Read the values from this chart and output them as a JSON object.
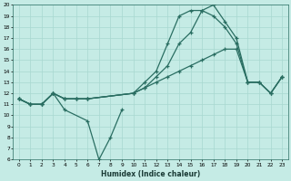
{
  "xlabel": "Humidex (Indice chaleur)",
  "xlim": [
    -0.5,
    23.5
  ],
  "ylim": [
    6,
    20
  ],
  "yticks": [
    6,
    7,
    8,
    9,
    10,
    11,
    12,
    13,
    14,
    15,
    16,
    17,
    18,
    19,
    20
  ],
  "xticks": [
    0,
    1,
    2,
    3,
    4,
    5,
    6,
    7,
    8,
    9,
    10,
    11,
    12,
    13,
    14,
    15,
    16,
    17,
    18,
    19,
    20,
    21,
    22,
    23
  ],
  "line_color": "#2a6e62",
  "bg_color": "#c5ebe5",
  "grid_color": "#a8d8d0",
  "lines": [
    {
      "x": [
        0,
        1,
        2,
        3,
        4,
        6,
        7,
        8,
        9
      ],
      "y": [
        11.5,
        11.0,
        11.0,
        12.0,
        10.5,
        9.5,
        6.0,
        8.0,
        10.5
      ]
    },
    {
      "x": [
        0,
        1,
        2,
        3,
        4,
        5,
        6,
        10,
        11,
        12,
        13,
        14,
        15,
        16,
        17,
        18,
        19,
        20,
        21,
        22,
        23
      ],
      "y": [
        11.5,
        11.0,
        11.0,
        12.0,
        11.5,
        11.5,
        11.5,
        12.0,
        12.5,
        13.0,
        13.5,
        14.0,
        14.5,
        15.0,
        15.5,
        16.0,
        16.0,
        13.0,
        13.0,
        12.0,
        13.5
      ]
    },
    {
      "x": [
        0,
        1,
        2,
        3,
        4,
        5,
        6,
        10,
        11,
        12,
        13,
        14,
        15,
        16,
        17,
        18,
        19,
        20,
        21,
        22,
        23
      ],
      "y": [
        11.5,
        11.0,
        11.0,
        12.0,
        11.5,
        11.5,
        11.5,
        12.0,
        12.5,
        13.5,
        14.5,
        16.5,
        17.5,
        19.5,
        19.0,
        18.0,
        16.5,
        13.0,
        13.0,
        12.0,
        13.5
      ]
    },
    {
      "x": [
        0,
        1,
        2,
        3,
        4,
        5,
        6,
        10,
        11,
        12,
        13,
        14,
        15,
        16,
        17,
        18,
        19,
        20,
        21,
        22,
        23
      ],
      "y": [
        11.5,
        11.0,
        11.0,
        12.0,
        11.5,
        11.5,
        11.5,
        12.0,
        13.0,
        14.0,
        16.5,
        19.0,
        19.5,
        19.5,
        20.0,
        18.5,
        17.0,
        13.0,
        13.0,
        12.0,
        13.5
      ]
    }
  ]
}
